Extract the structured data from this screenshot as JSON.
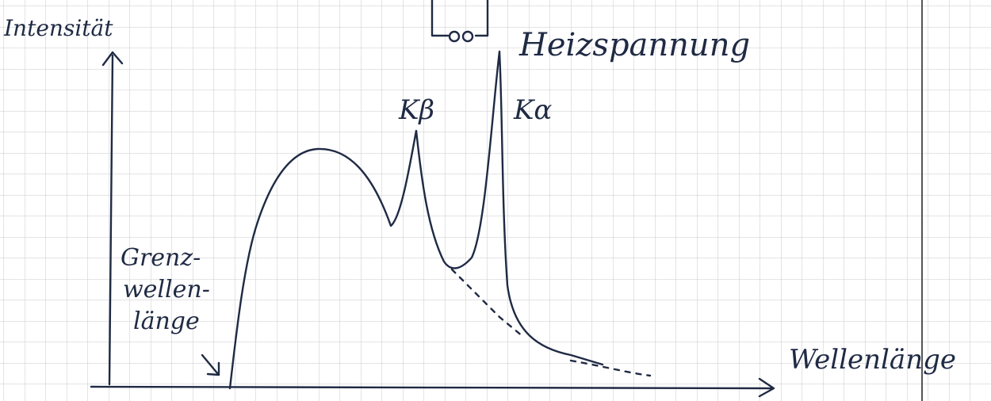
{
  "diagram": {
    "y_axis_label": "Intensität",
    "x_axis_label": "Wellenlänge",
    "voltage_label": "Heizspannung",
    "peaks": [
      "Kβ",
      "Kα"
    ],
    "cutoff_label": [
      "Grenz-",
      "wellen-",
      "länge"
    ]
  }
}
